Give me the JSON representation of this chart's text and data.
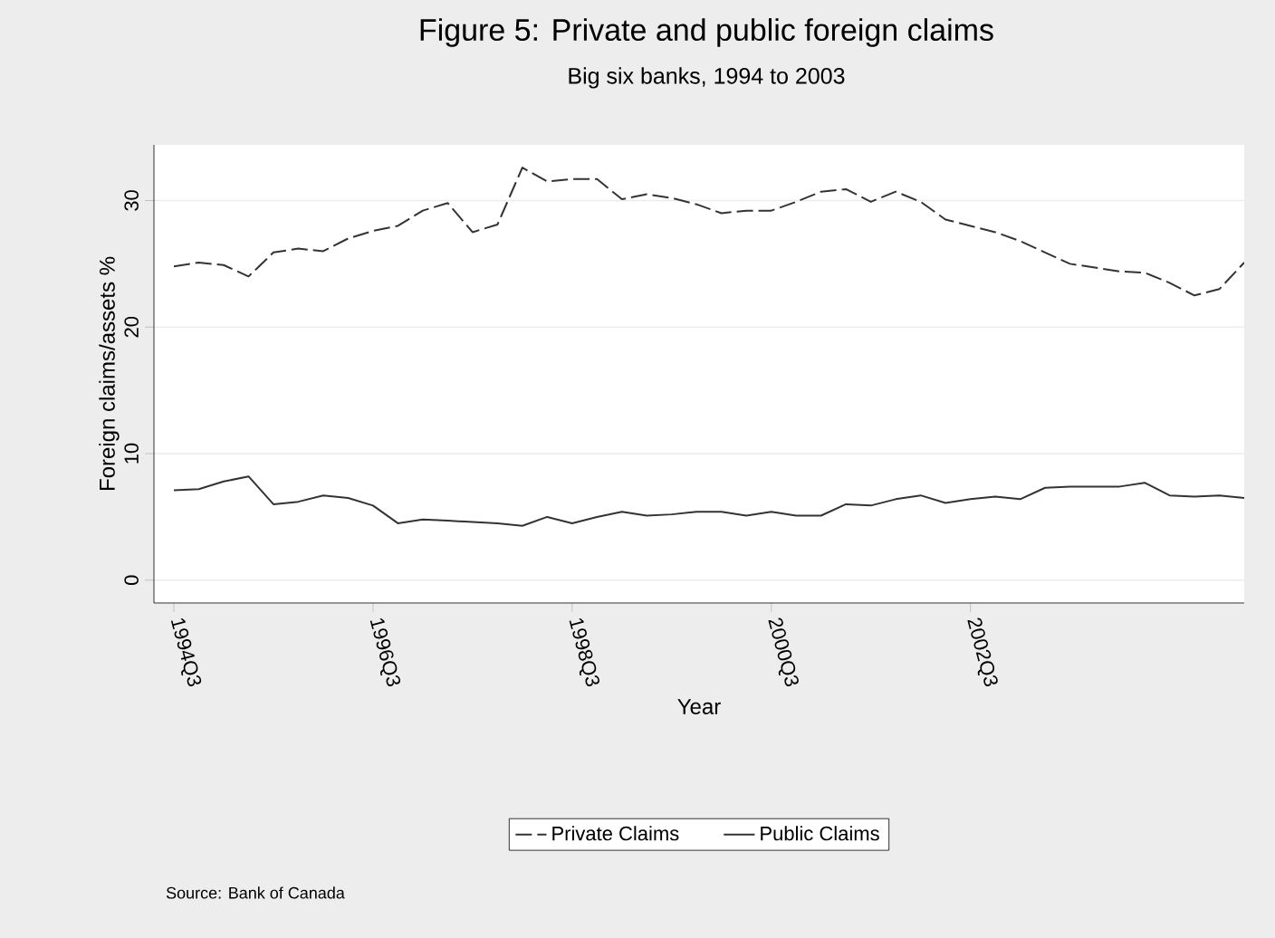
{
  "chart_data": {
    "type": "line",
    "title": "Figure 5: Private and public foreign claims",
    "subtitle": "Big six banks, 1994 to 2003",
    "xlabel": "Year",
    "ylabel": "Foreign claims/assets %",
    "annotations": [
      "Source: Bank of Canada"
    ],
    "categories": [
      "1994Q3",
      null,
      null,
      null,
      null,
      null,
      null,
      null,
      "1996Q3",
      null,
      null,
      null,
      null,
      null,
      null,
      null,
      "1998Q3",
      null,
      null,
      null,
      null,
      null,
      null,
      null,
      "2000Q3",
      null,
      null,
      null,
      null,
      null,
      null,
      null,
      "2002Q3",
      null,
      null,
      null,
      null,
      null,
      null,
      null,
      null,
      null,
      null,
      null
    ],
    "series": [
      {
        "name": "Private Claims",
        "color": "#333333",
        "line_style": "dashed",
        "values": [
          24.8,
          25.1,
          24.9,
          24.0,
          25.9,
          26.2,
          26.0,
          27.0,
          27.6,
          28.0,
          29.2,
          29.8,
          27.5,
          28.1,
          32.6,
          31.5,
          31.7,
          31.7,
          30.1,
          30.5,
          30.2,
          29.7,
          29.0,
          29.2,
          29.2,
          29.9,
          30.7,
          30.9,
          29.9,
          30.7,
          29.9,
          28.5,
          28.0,
          27.5,
          26.8,
          25.9,
          25.0,
          24.7,
          24.4,
          24.3,
          23.5,
          22.5,
          23.0,
          25.1
        ]
      },
      {
        "name": "Public Claims",
        "color": "#333333",
        "line_style": "solid",
        "values": [
          7.1,
          7.2,
          7.8,
          8.2,
          6.0,
          6.2,
          6.7,
          6.5,
          5.9,
          4.5,
          4.8,
          4.7,
          4.6,
          4.5,
          4.3,
          5.0,
          4.5,
          5.0,
          5.4,
          5.1,
          5.2,
          5.4,
          5.4,
          5.1,
          5.4,
          5.1,
          5.1,
          6.0,
          5.9,
          6.4,
          6.7,
          6.1,
          6.4,
          6.6,
          6.4,
          7.3,
          7.4,
          7.4,
          7.4,
          7.7,
          6.7,
          6.6,
          6.7,
          6.5
        ]
      }
    ],
    "ylim": [
      -1.8,
      34.4
    ],
    "yticks": [
      0,
      10,
      20,
      30
    ],
    "grid": "y",
    "legend": "bottom"
  }
}
